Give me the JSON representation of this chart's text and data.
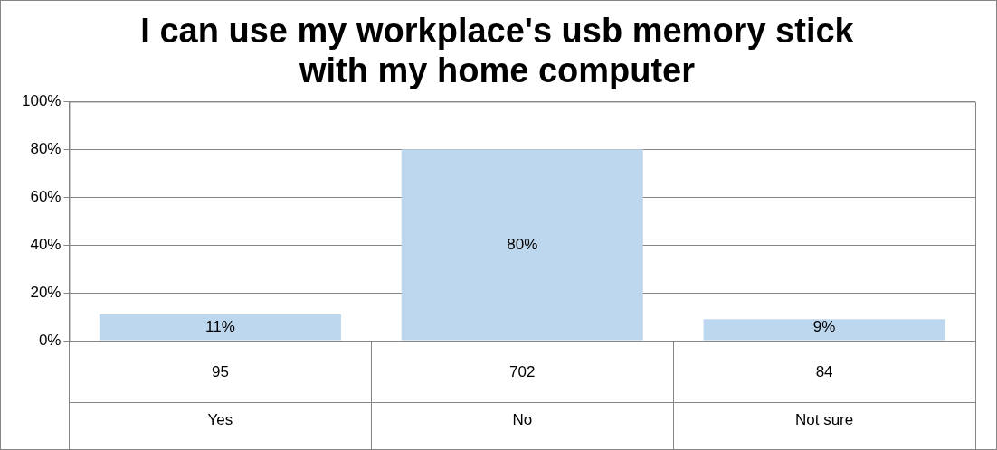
{
  "chart_data": {
    "type": "bar",
    "title": "I can use my workplace's usb memory stick with my home computer",
    "categories": [
      "Yes",
      "No",
      "Not sure"
    ],
    "values": [
      11,
      80,
      9
    ],
    "value_labels": [
      "11%",
      "80%",
      "9%"
    ],
    "color": "#bdd7ee",
    "ylim": [
      0,
      100
    ],
    "yticks": [
      {
        "value": 0,
        "label": "0%"
      },
      {
        "value": 20,
        "label": "20%"
      },
      {
        "value": 40,
        "label": "40%"
      },
      {
        "value": 60,
        "label": "60%"
      },
      {
        "value": 80,
        "label": "80%"
      },
      {
        "value": 100,
        "label": "100%"
      }
    ],
    "grid": "y",
    "legend": false,
    "annotations": [
      "95",
      "702",
      "84"
    ]
  }
}
